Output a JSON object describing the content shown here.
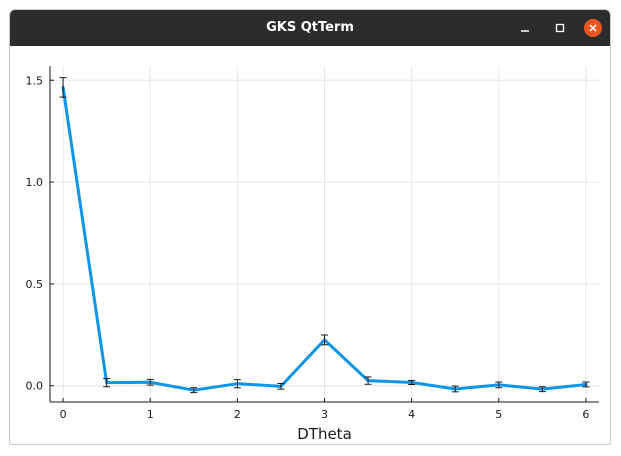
{
  "window": {
    "title": "GKS QtTerm",
    "buttons": {
      "minimize_icon": "minimize-icon",
      "maximize_icon": "maximize-icon",
      "close_icon": "close-icon"
    },
    "titlebar_color": "#2c2c2c",
    "close_color": "#e95420"
  },
  "chart_data": {
    "type": "line",
    "title": "",
    "xlabel": "DTheta",
    "ylabel": "",
    "xlim": [
      -0.15,
      6.15
    ],
    "ylim": [
      -0.08,
      1.57
    ],
    "x_ticks": [
      0,
      1,
      2,
      3,
      4,
      5,
      6
    ],
    "x_tick_labels": [
      "0",
      "1",
      "2",
      "3",
      "4",
      "5",
      "6"
    ],
    "y_ticks": [
      0,
      0.5,
      1.0,
      1.5
    ],
    "y_tick_labels": [
      "0.0",
      "0.5",
      "1.0",
      "1.5"
    ],
    "grid": true,
    "legend": "none",
    "series": [
      {
        "color": "#0c95e9",
        "x": [
          0,
          0.5,
          1,
          1.5,
          2,
          2.5,
          3,
          3.5,
          4,
          4.5,
          5,
          5.5,
          6
        ],
        "y": [
          1.465,
          0.015,
          0.017,
          -0.022,
          0.01,
          -0.003,
          0.225,
          0.025,
          0.016,
          -0.016,
          0.004,
          -0.017,
          0.006
        ],
        "yerr": [
          0.048,
          0.02,
          0.014,
          0.012,
          0.02,
          0.014,
          0.024,
          0.018,
          0.01,
          0.014,
          0.014,
          0.012,
          0.012
        ]
      }
    ]
  }
}
